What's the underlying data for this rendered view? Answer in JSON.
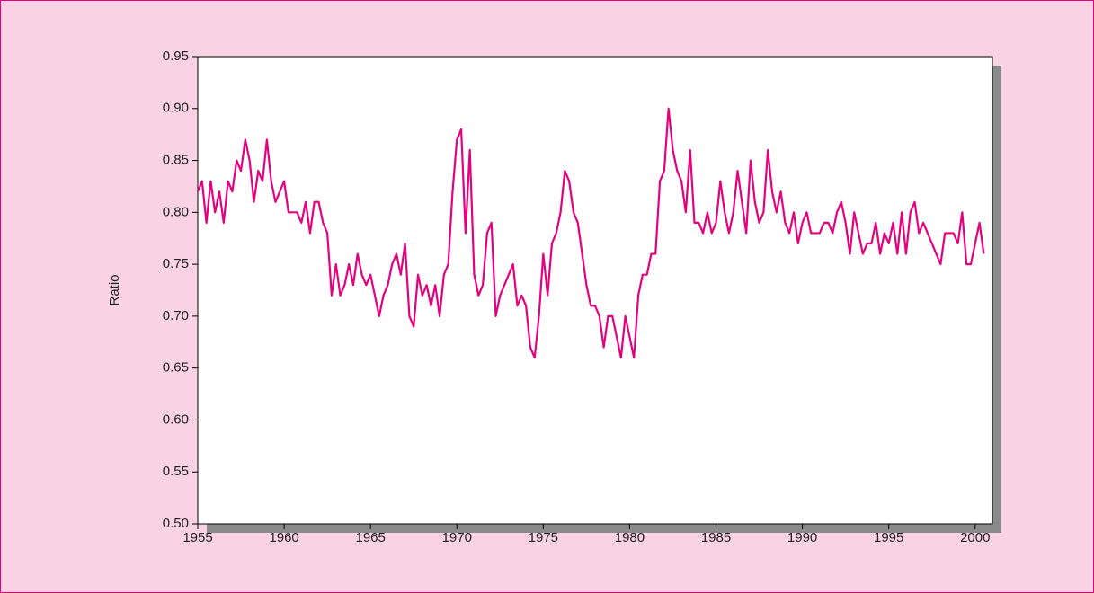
{
  "chart_data": {
    "type": "line",
    "y_label": "Ratio",
    "color": "#e5007d",
    "x": [
      1955,
      1955.25,
      1955.5,
      1955.75,
      1956,
      1956.25,
      1956.5,
      1956.75,
      1957,
      1957.25,
      1957.5,
      1957.75,
      1958,
      1958.25,
      1958.5,
      1958.75,
      1959,
      1959.25,
      1959.5,
      1959.75,
      1960,
      1960.25,
      1960.5,
      1960.75,
      1961,
      1961.25,
      1961.5,
      1961.75,
      1962,
      1962.25,
      1962.5,
      1962.75,
      1963,
      1963.25,
      1963.5,
      1963.75,
      1964,
      1964.25,
      1964.5,
      1964.75,
      1965,
      1965.25,
      1965.5,
      1965.75,
      1966,
      1966.25,
      1966.5,
      1966.75,
      1967,
      1967.25,
      1967.5,
      1967.75,
      1968,
      1968.25,
      1968.5,
      1968.75,
      1969,
      1969.25,
      1969.5,
      1969.75,
      1970,
      1970.25,
      1970.5,
      1970.75,
      1971,
      1971.25,
      1971.5,
      1971.75,
      1972,
      1972.25,
      1972.5,
      1972.75,
      1973,
      1973.25,
      1973.5,
      1973.75,
      1974,
      1974.25,
      1974.5,
      1974.75,
      1975,
      1975.25,
      1975.5,
      1975.75,
      1976,
      1976.25,
      1976.5,
      1976.75,
      1977,
      1977.25,
      1977.5,
      1977.75,
      1978,
      1978.25,
      1978.5,
      1978.75,
      1979,
      1979.25,
      1979.5,
      1979.75,
      1980,
      1980.25,
      1980.5,
      1980.75,
      1981,
      1981.25,
      1981.5,
      1981.75,
      1982,
      1982.25,
      1982.5,
      1982.75,
      1983,
      1983.25,
      1983.5,
      1983.75,
      1984,
      1984.25,
      1984.5,
      1984.75,
      1985,
      1985.25,
      1985.5,
      1985.75,
      1986,
      1986.25,
      1986.5,
      1986.75,
      1987,
      1987.25,
      1987.5,
      1987.75,
      1988,
      1988.25,
      1988.5,
      1988.75,
      1989,
      1989.25,
      1989.5,
      1989.75,
      1990,
      1990.25,
      1990.5,
      1990.75,
      1991,
      1991.25,
      1991.5,
      1991.75,
      1992,
      1992.25,
      1992.5,
      1992.75,
      1993,
      1993.25,
      1993.5,
      1993.75,
      1994,
      1994.25,
      1994.5,
      1994.75,
      1995,
      1995.25,
      1995.5,
      1995.75,
      1996,
      1996.25,
      1996.5,
      1996.75,
      1997,
      1997.25,
      1997.5,
      1997.75,
      1998,
      1998.25,
      1998.5,
      1998.75,
      1999,
      1999.25,
      1999.5,
      1999.75,
      2000,
      2000.25,
      2000.5
    ],
    "values": [
      0.82,
      0.83,
      0.79,
      0.83,
      0.8,
      0.82,
      0.79,
      0.83,
      0.82,
      0.85,
      0.84,
      0.87,
      0.85,
      0.81,
      0.84,
      0.83,
      0.87,
      0.83,
      0.81,
      0.82,
      0.83,
      0.8,
      0.8,
      0.8,
      0.79,
      0.81,
      0.78,
      0.81,
      0.81,
      0.79,
      0.78,
      0.72,
      0.75,
      0.72,
      0.73,
      0.75,
      0.73,
      0.76,
      0.74,
      0.73,
      0.74,
      0.72,
      0.7,
      0.72,
      0.73,
      0.75,
      0.76,
      0.74,
      0.77,
      0.7,
      0.69,
      0.74,
      0.72,
      0.73,
      0.71,
      0.73,
      0.7,
      0.74,
      0.75,
      0.82,
      0.87,
      0.88,
      0.78,
      0.86,
      0.74,
      0.72,
      0.73,
      0.78,
      0.79,
      0.7,
      0.72,
      0.73,
      0.74,
      0.75,
      0.71,
      0.72,
      0.71,
      0.67,
      0.66,
      0.7,
      0.76,
      0.72,
      0.77,
      0.78,
      0.8,
      0.84,
      0.83,
      0.8,
      0.79,
      0.76,
      0.73,
      0.71,
      0.71,
      0.7,
      0.67,
      0.7,
      0.7,
      0.68,
      0.66,
      0.7,
      0.68,
      0.66,
      0.72,
      0.74,
      0.74,
      0.76,
      0.76,
      0.83,
      0.84,
      0.9,
      0.86,
      0.84,
      0.83,
      0.8,
      0.86,
      0.79,
      0.79,
      0.78,
      0.8,
      0.78,
      0.79,
      0.83,
      0.8,
      0.78,
      0.8,
      0.84,
      0.81,
      0.78,
      0.85,
      0.81,
      0.79,
      0.8,
      0.86,
      0.82,
      0.8,
      0.82,
      0.79,
      0.78,
      0.8,
      0.77,
      0.79,
      0.8,
      0.78,
      0.78,
      0.78,
      0.79,
      0.79,
      0.78,
      0.8,
      0.81,
      0.79,
      0.76,
      0.8,
      0.78,
      0.76,
      0.77,
      0.77,
      0.79,
      0.76,
      0.78,
      0.77,
      0.79,
      0.76,
      0.8,
      0.76,
      0.8,
      0.81,
      0.78,
      0.79,
      0.78,
      0.77,
      0.76,
      0.75,
      0.78,
      0.78,
      0.78,
      0.77,
      0.8,
      0.75,
      0.75,
      0.77,
      0.79,
      0.76
    ],
    "xlim": [
      1955,
      2001
    ],
    "ylim": [
      0.5,
      0.95
    ],
    "xticks": [
      1955,
      1960,
      1965,
      1970,
      1975,
      1980,
      1985,
      1990,
      1995,
      2000
    ],
    "yticks": [
      {
        "value": 0.5,
        "label": "0.50"
      },
      0.55,
      {
        "value": 0.6,
        "label": "0.60"
      },
      0.65,
      {
        "value": 0.7,
        "label": "0.70"
      },
      0.75,
      {
        "value": 0.8,
        "label": "0.80"
      },
      0.85,
      {
        "value": 0.9,
        "label": "0.90"
      },
      0.95
    ]
  }
}
